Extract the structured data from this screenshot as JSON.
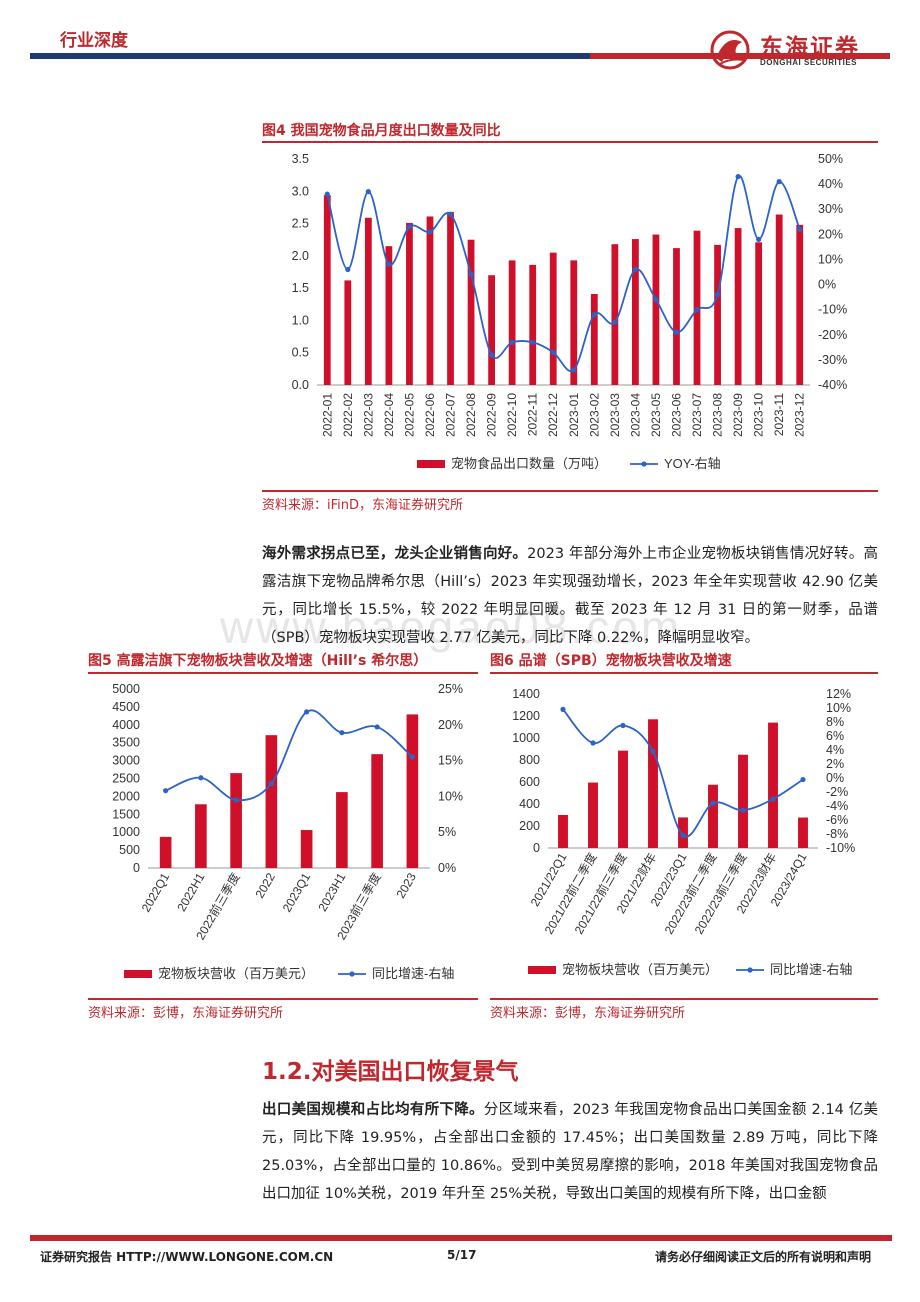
{
  "header": {
    "tag": "行业深度",
    "logo_cn": "东海证券",
    "logo_en": "DONGHAI SECURITIES"
  },
  "watermark": "www.baogao08.com",
  "fig4": {
    "title": "图4  我国宠物食品月度出口数量及同比",
    "source": "资料来源：iFinD，东海证券研究所",
    "legend_bar": "宠物食品出口数量（万吨）",
    "legend_line": "YOY-右轴",
    "chart_data": {
      "type": "bar",
      "categories": [
        "2022-01",
        "2022-02",
        "2022-03",
        "2022-04",
        "2022-05",
        "2022-06",
        "2022-07",
        "2022-08",
        "2022-09",
        "2022-10",
        "2022-11",
        "2022-12",
        "2023-01",
        "2023-02",
        "2023-03",
        "2023-04",
        "2023-05",
        "2023-06",
        "2023-07",
        "2023-08",
        "2023-09",
        "2023-10",
        "2023-11",
        "2023-12"
      ],
      "series": [
        {
          "name": "宠物食品出口数量（万吨）",
          "axis": "left",
          "values": [
            2.94,
            1.62,
            2.59,
            2.15,
            2.51,
            2.61,
            2.68,
            2.25,
            1.7,
            1.93,
            1.86,
            2.05,
            1.93,
            1.41,
            2.18,
            2.26,
            2.33,
            2.12,
            2.39,
            2.17,
            2.43,
            2.21,
            2.64,
            2.48
          ]
        },
        {
          "name": "YOY-右轴",
          "axis": "right",
          "type": "line",
          "values": [
            36,
            6,
            37,
            8,
            23,
            21,
            28,
            4,
            -28,
            -23,
            -23,
            -27,
            -34,
            -12,
            -15,
            6,
            -6,
            -19,
            -10,
            -4,
            43,
            18,
            41,
            22
          ]
        }
      ],
      "ylim": [
        0,
        3.5
      ],
      "yticks": [
        "0.0",
        "0.5",
        "1.0",
        "1.5",
        "2.0",
        "2.5",
        "3.0",
        "3.5"
      ],
      "ylim_right": [
        -40,
        50
      ],
      "yticks_right": [
        "-40%",
        "-30%",
        "-20%",
        "-10%",
        "0%",
        "10%",
        "20%",
        "30%",
        "40%",
        "50%"
      ]
    }
  },
  "para1": {
    "lead": "海外需求拐点已至，龙头企业销售向好。",
    "text": "2023 年部分海外上市企业宠物板块销售情况好转。高露洁旗下宠物品牌希尔思（Hill’s）2023 年实现强劲增长，2023 年全年实现营收 42.90 亿美元，同比增长 15.5%，较 2022 年明显回暖。截至 2023 年 12 月 31 日的第一财季，品谱（SPB）宠物板块实现营收 2.77 亿美元，同比下降 0.22%，降幅明显收窄。"
  },
  "fig5": {
    "title": "图5  高露洁旗下宠物板块营收及增速（Hill’s 希尔思）",
    "source": "资料来源：彭博，东海证券研究所",
    "legend_bar": "宠物板块营收（百万美元）",
    "legend_line": "同比增速-右轴",
    "chart_data": {
      "type": "bar",
      "categories": [
        "2022Q1",
        "2022H1",
        "2022前三季度",
        "2022",
        "2023Q1",
        "2023H1",
        "2023前三季度",
        "2023"
      ],
      "series": [
        {
          "name": "宠物板块营收（百万美元）",
          "axis": "left",
          "values": [
            870,
            1780,
            2650,
            3710,
            1060,
            2120,
            3180,
            4290
          ]
        },
        {
          "name": "同比增速-右轴",
          "axis": "right",
          "type": "line",
          "values": [
            10.8,
            12.6,
            9.5,
            11.8,
            21.8,
            18.9,
            19.7,
            15.5
          ]
        }
      ],
      "ylim": [
        0,
        5000
      ],
      "yticks": [
        "0",
        "500",
        "1000",
        "1500",
        "2000",
        "2500",
        "3000",
        "3500",
        "4000",
        "4500",
        "5000"
      ],
      "ylim_right": [
        0,
        25
      ],
      "yticks_right": [
        "0%",
        "5%",
        "10%",
        "15%",
        "20%",
        "25%"
      ]
    }
  },
  "fig6": {
    "title": "图6  品谱（SPB）宠物板块营收及增速",
    "source": "资料来源：彭博，东海证券研究所",
    "legend_bar": "宠物板块营收（百万美元）",
    "legend_line": "同比增速-右轴",
    "chart_data": {
      "type": "bar",
      "categories": [
        "2021/22Q1",
        "2021/22前二季度",
        "2021/22前三季度",
        "2021/22财年",
        "2022/23Q1",
        "2022/23前二季度",
        "2022/23前三季度",
        "2022/23财年",
        "2023/24Q1"
      ],
      "series": [
        {
          "name": "宠物板块营收（百万美元）",
          "axis": "left",
          "values": [
            300,
            595,
            885,
            1170,
            278,
            575,
            848,
            1140,
            277
          ]
        },
        {
          "name": "同比增速-右轴",
          "axis": "right",
          "type": "line",
          "values": [
            9.8,
            5.0,
            7.5,
            3.8,
            -8.2,
            -3.6,
            -4.6,
            -3.0,
            -0.22
          ]
        }
      ],
      "ylim": [
        0,
        1400
      ],
      "yticks": [
        "0",
        "200",
        "400",
        "600",
        "800",
        "1000",
        "1200",
        "1400"
      ],
      "ylim_right": [
        -10,
        12
      ],
      "yticks_right": [
        "-10%",
        "-8%",
        "-6%",
        "-4%",
        "-2%",
        "0%",
        "2%",
        "4%",
        "6%",
        "8%",
        "10%",
        "12%"
      ]
    }
  },
  "section": {
    "title": "1.2.对美国出口恢复景气"
  },
  "para2": {
    "lead": "出口美国规模和占比均有所下降。",
    "text": "分区域来看，2023 年我国宠物食品出口美国金额 2.14 亿美元，同比下降 19.95%，占全部出口金额的 17.45%；出口美国数量 2.89 万吨，同比下降 25.03%，占全部出口量的 10.86%。受到中美贸易摩擦的影响，2018 年美国对我国宠物食品出口加征 10%关税，2019 年升至 25%关税，导致出口美国的规模有所下降，出口金额"
  },
  "footer": {
    "left": "证券研究报告    HTTP://WWW.LONGONE.COM.CN",
    "page": "5/17",
    "right": "请务必仔细阅读正文后的所有说明和声明"
  },
  "colors": {
    "bar": "#d0102a",
    "line": "#2b63c8",
    "accent": "#c0282d",
    "navy": "#1f3a6e"
  }
}
